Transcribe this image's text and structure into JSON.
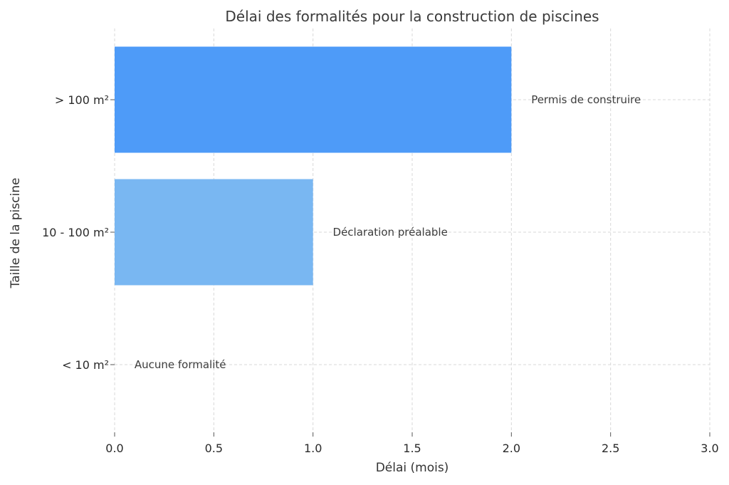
{
  "chart_data": {
    "type": "bar",
    "orientation": "horizontal",
    "title": "Délai des formalités pour la construction de piscines",
    "xlabel": "Délai (mois)",
    "ylabel": "Taille de la piscine",
    "xlim": [
      0,
      3
    ],
    "xticks": [
      "0.0",
      "0.5",
      "1.0",
      "1.5",
      "2.0",
      "2.5",
      "3.0"
    ],
    "grid": true,
    "categories": [
      "< 10 m²",
      "10 - 100 m²",
      "> 100 m²"
    ],
    "values": [
      0,
      1,
      2
    ],
    "bar_labels": [
      "Aucune formalité",
      "Déclaration préalable",
      "Permis de construire"
    ],
    "colors": [
      "#b0d4f5",
      "#79b7f2",
      "#4e9bf8"
    ]
  }
}
